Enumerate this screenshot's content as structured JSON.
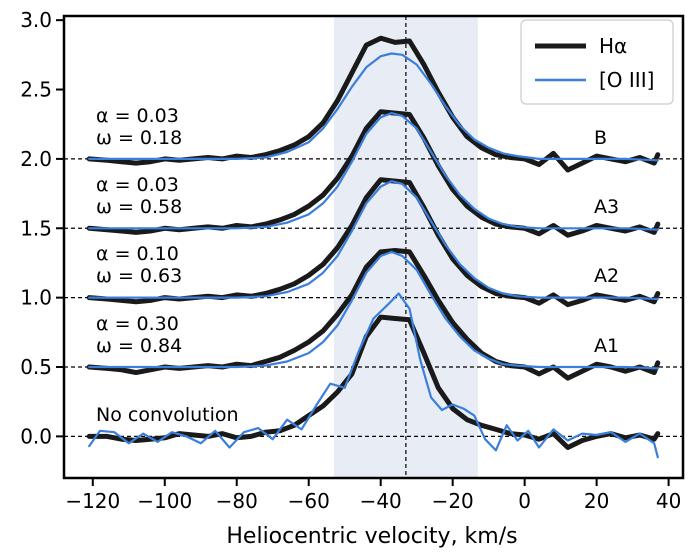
{
  "chart_data": {
    "type": "line",
    "xlabel": "Heliocentric velocity, km/s",
    "ylabel": "",
    "xlim": [
      -128,
      44
    ],
    "ylim": [
      -0.3,
      3.03
    ],
    "xticks": [
      -120,
      -100,
      -80,
      -60,
      -40,
      -20,
      0,
      20,
      40
    ],
    "yticks": [
      0.0,
      0.5,
      1.0,
      1.5,
      2.0,
      2.5,
      3.0
    ],
    "xtick_labels": [
      "−120",
      "−100",
      "−80",
      "−60",
      "−40",
      "−20",
      "0",
      "20",
      "40"
    ],
    "ytick_labels": [
      "0.0",
      "0.5",
      "1.0",
      "1.5",
      "2.0",
      "2.5",
      "3.0"
    ],
    "grid": false,
    "legend_position": "top-right",
    "shaded_band": {
      "x": [
        -53,
        -13
      ],
      "color": "#e8ecf5"
    },
    "vertical_line": {
      "x": -33,
      "style": "dashed"
    },
    "baselines": [
      0.0,
      0.5,
      1.0,
      1.5,
      2.0
    ],
    "colors": {
      "halpha": "#1a1a1a",
      "oiii": "#3a7fdc"
    },
    "series": [
      {
        "name": "Hα",
        "group": "No convolution",
        "offset": 0.0,
        "x": [
          -121,
          -116,
          -112,
          -108,
          -104,
          -100,
          -96,
          -92,
          -88,
          -84,
          -80,
          -76,
          -72,
          -68,
          -64,
          -60,
          -56,
          -52,
          -48,
          -44,
          -40,
          -36,
          -32,
          -28,
          -24,
          -20,
          -16,
          -12,
          -8,
          -4,
          0,
          4,
          8,
          12,
          16,
          20,
          24,
          28,
          32,
          36,
          37
        ],
        "values": [
          0.0,
          0.0,
          -0.02,
          -0.03,
          -0.02,
          -0.01,
          0.02,
          0.01,
          0.0,
          0.02,
          -0.01,
          0.0,
          0.03,
          0.04,
          0.08,
          0.15,
          0.22,
          0.32,
          0.45,
          0.72,
          0.86,
          0.85,
          0.84,
          0.6,
          0.35,
          0.2,
          0.12,
          0.08,
          0.05,
          0.02,
          0.01,
          -0.02,
          0.02,
          -0.08,
          -0.03,
          0.0,
          0.02,
          -0.01,
          0.01,
          -0.02,
          0.02
        ]
      },
      {
        "name": "[O III]",
        "group": "No convolution",
        "offset": 0.0,
        "x": [
          -121,
          -118,
          -114,
          -110,
          -106,
          -102,
          -98,
          -94,
          -90,
          -86,
          -82,
          -78,
          -74,
          -70,
          -66,
          -62,
          -58,
          -54,
          -50,
          -46,
          -42,
          -38,
          -35,
          -32,
          -29,
          -26,
          -23,
          -20,
          -17,
          -14,
          -11,
          -8,
          -5,
          -2,
          1,
          4,
          8,
          12,
          16,
          20,
          24,
          28,
          32,
          36,
          37
        ],
        "values": [
          -0.07,
          0.04,
          0.03,
          -0.05,
          0.02,
          -0.04,
          0.03,
          0.0,
          -0.05,
          0.04,
          -0.08,
          0.03,
          0.06,
          -0.02,
          0.12,
          0.05,
          0.22,
          0.38,
          0.35,
          0.62,
          0.85,
          0.95,
          1.03,
          0.92,
          0.55,
          0.28,
          0.19,
          0.23,
          0.2,
          0.15,
          -0.02,
          -0.1,
          0.08,
          -0.03,
          0.04,
          -0.08,
          0.05,
          -0.03,
          0.02,
          0.01,
          0.03,
          -0.04,
          0.02,
          -0.05,
          -0.15
        ]
      },
      {
        "name": "Hα",
        "group": "A1",
        "offset": 0.5,
        "x": [
          -121,
          -116,
          -112,
          -108,
          -104,
          -100,
          -96,
          -92,
          -88,
          -84,
          -80,
          -76,
          -72,
          -68,
          -64,
          -60,
          -56,
          -52,
          -48,
          -44,
          -40,
          -36,
          -32,
          -28,
          -24,
          -20,
          -16,
          -12,
          -8,
          -4,
          0,
          4,
          8,
          12,
          16,
          20,
          24,
          28,
          32,
          36,
          37
        ],
        "values": [
          0.5,
          0.49,
          0.48,
          0.46,
          0.48,
          0.5,
          0.49,
          0.5,
          0.51,
          0.5,
          0.52,
          0.51,
          0.54,
          0.57,
          0.62,
          0.68,
          0.76,
          0.88,
          1.02,
          1.22,
          1.33,
          1.34,
          1.33,
          1.16,
          0.98,
          0.82,
          0.7,
          0.6,
          0.54,
          0.51,
          0.5,
          0.45,
          0.5,
          0.42,
          0.47,
          0.52,
          0.5,
          0.47,
          0.5,
          0.46,
          0.53
        ]
      },
      {
        "name": "[O III]",
        "group": "A1",
        "offset": 0.5,
        "x": [
          -121,
          -112,
          -104,
          -96,
          -88,
          -80,
          -72,
          -66,
          -60,
          -56,
          -52,
          -48,
          -44,
          -40,
          -37,
          -34,
          -30,
          -26,
          -22,
          -18,
          -14,
          -10,
          -6,
          -2,
          4,
          12,
          20,
          28,
          37
        ],
        "values": [
          0.5,
          0.5,
          0.5,
          0.5,
          0.5,
          0.5,
          0.51,
          0.54,
          0.6,
          0.68,
          0.8,
          0.98,
          1.18,
          1.3,
          1.33,
          1.3,
          1.2,
          1.02,
          0.85,
          0.72,
          0.62,
          0.56,
          0.52,
          0.51,
          0.5,
          0.5,
          0.5,
          0.5,
          0.49
        ]
      },
      {
        "name": "Hα",
        "group": "A2",
        "offset": 1.0,
        "x": [
          -121,
          -116,
          -112,
          -108,
          -104,
          -100,
          -96,
          -92,
          -88,
          -84,
          -80,
          -76,
          -72,
          -68,
          -64,
          -60,
          -56,
          -52,
          -48,
          -44,
          -40,
          -36,
          -32,
          -28,
          -24,
          -20,
          -16,
          -12,
          -8,
          -4,
          0,
          4,
          8,
          12,
          16,
          20,
          24,
          28,
          32,
          36,
          37
        ],
        "values": [
          1.0,
          0.99,
          0.98,
          0.97,
          0.98,
          1.0,
          0.99,
          1.0,
          1.01,
          1.0,
          1.02,
          1.01,
          1.03,
          1.06,
          1.1,
          1.16,
          1.24,
          1.36,
          1.52,
          1.72,
          1.85,
          1.84,
          1.83,
          1.65,
          1.45,
          1.28,
          1.16,
          1.08,
          1.03,
          1.01,
          1.0,
          0.96,
          1.02,
          0.95,
          0.98,
          1.02,
          1.0,
          0.98,
          1.01,
          0.97,
          1.03
        ]
      },
      {
        "name": "[O III]",
        "group": "A2",
        "offset": 1.0,
        "x": [
          -121,
          -112,
          -104,
          -96,
          -88,
          -80,
          -72,
          -66,
          -60,
          -56,
          -52,
          -48,
          -44,
          -40,
          -37,
          -34,
          -30,
          -26,
          -22,
          -18,
          -14,
          -10,
          -6,
          -2,
          4,
          12,
          20,
          28,
          37
        ],
        "values": [
          1.0,
          1.0,
          1.0,
          1.0,
          1.0,
          1.0,
          1.01,
          1.04,
          1.1,
          1.18,
          1.3,
          1.48,
          1.68,
          1.8,
          1.84,
          1.82,
          1.72,
          1.55,
          1.38,
          1.24,
          1.14,
          1.07,
          1.03,
          1.01,
          1.0,
          1.0,
          1.0,
          1.0,
          0.99
        ]
      },
      {
        "name": "Hα",
        "group": "A3",
        "offset": 1.5,
        "x": [
          -121,
          -116,
          -112,
          -108,
          -104,
          -100,
          -96,
          -92,
          -88,
          -84,
          -80,
          -76,
          -72,
          -68,
          -64,
          -60,
          -56,
          -52,
          -48,
          -44,
          -40,
          -36,
          -32,
          -28,
          -24,
          -20,
          -16,
          -12,
          -8,
          -4,
          0,
          4,
          8,
          12,
          16,
          20,
          24,
          28,
          32,
          36,
          37
        ],
        "values": [
          1.5,
          1.49,
          1.48,
          1.47,
          1.48,
          1.5,
          1.49,
          1.5,
          1.51,
          1.5,
          1.52,
          1.51,
          1.53,
          1.56,
          1.6,
          1.66,
          1.74,
          1.86,
          2.02,
          2.22,
          2.34,
          2.33,
          2.32,
          2.15,
          1.95,
          1.78,
          1.66,
          1.58,
          1.53,
          1.51,
          1.5,
          1.46,
          1.52,
          1.45,
          1.48,
          1.52,
          1.5,
          1.48,
          1.51,
          1.47,
          1.53
        ]
      },
      {
        "name": "[O III]",
        "group": "A3",
        "offset": 1.5,
        "x": [
          -121,
          -112,
          -104,
          -96,
          -88,
          -80,
          -72,
          -66,
          -60,
          -56,
          -52,
          -48,
          -44,
          -40,
          -37,
          -34,
          -30,
          -26,
          -22,
          -18,
          -14,
          -10,
          -6,
          -2,
          4,
          12,
          20,
          28,
          37
        ],
        "values": [
          1.5,
          1.5,
          1.5,
          1.5,
          1.5,
          1.5,
          1.51,
          1.54,
          1.6,
          1.68,
          1.8,
          1.98,
          2.18,
          2.3,
          2.33,
          2.31,
          2.22,
          2.05,
          1.88,
          1.74,
          1.64,
          1.57,
          1.53,
          1.51,
          1.5,
          1.5,
          1.5,
          1.5,
          1.49
        ]
      },
      {
        "name": "Hα",
        "group": "B",
        "offset": 2.0,
        "x": [
          -121,
          -116,
          -112,
          -108,
          -104,
          -100,
          -96,
          -92,
          -88,
          -84,
          -80,
          -76,
          -72,
          -68,
          -64,
          -60,
          -56,
          -52,
          -48,
          -44,
          -40,
          -36,
          -32,
          -28,
          -24,
          -20,
          -16,
          -12,
          -8,
          -4,
          0,
          4,
          8,
          12,
          16,
          20,
          24,
          28,
          32,
          36,
          37
        ],
        "values": [
          2.0,
          1.99,
          1.98,
          1.97,
          1.98,
          2.0,
          1.99,
          2.0,
          2.01,
          2.0,
          2.02,
          2.01,
          2.03,
          2.06,
          2.1,
          2.16,
          2.26,
          2.42,
          2.62,
          2.82,
          2.87,
          2.84,
          2.85,
          2.68,
          2.48,
          2.3,
          2.16,
          2.08,
          2.03,
          2.01,
          2.0,
          1.96,
          2.04,
          1.92,
          1.97,
          2.02,
          2.0,
          1.98,
          2.01,
          1.97,
          2.03
        ]
      },
      {
        "name": "[O III]",
        "group": "B",
        "offset": 2.0,
        "x": [
          -121,
          -112,
          -104,
          -96,
          -88,
          -80,
          -72,
          -66,
          -60,
          -56,
          -52,
          -48,
          -44,
          -40,
          -37,
          -34,
          -30,
          -26,
          -22,
          -18,
          -14,
          -10,
          -6,
          -2,
          4,
          12,
          20,
          28,
          37
        ],
        "values": [
          2.0,
          2.0,
          2.0,
          2.0,
          2.0,
          2.0,
          2.01,
          2.05,
          2.12,
          2.22,
          2.36,
          2.52,
          2.66,
          2.74,
          2.76,
          2.75,
          2.68,
          2.54,
          2.38,
          2.24,
          2.14,
          2.08,
          2.04,
          2.02,
          2.0,
          2.0,
          2.0,
          2.0,
          1.99
        ]
      }
    ],
    "annotations": [
      {
        "id": "b",
        "lines": [
          "α = 0.03",
          "ω = 0.18"
        ],
        "label": "B"
      },
      {
        "id": "a3",
        "lines": [
          "α = 0.03",
          "ω = 0.58"
        ],
        "label": "A3"
      },
      {
        "id": "a2",
        "lines": [
          "α = 0.10",
          "ω = 0.63"
        ],
        "label": "A2"
      },
      {
        "id": "a1",
        "lines": [
          "α = 0.30",
          "ω = 0.84"
        ],
        "label": "A1"
      },
      {
        "id": "nc",
        "lines": [
          "No convolution"
        ],
        "label": ""
      }
    ],
    "legend": [
      {
        "text": "Hα",
        "series": "halpha"
      },
      {
        "text": "[O III]",
        "series": "oiii"
      }
    ]
  }
}
